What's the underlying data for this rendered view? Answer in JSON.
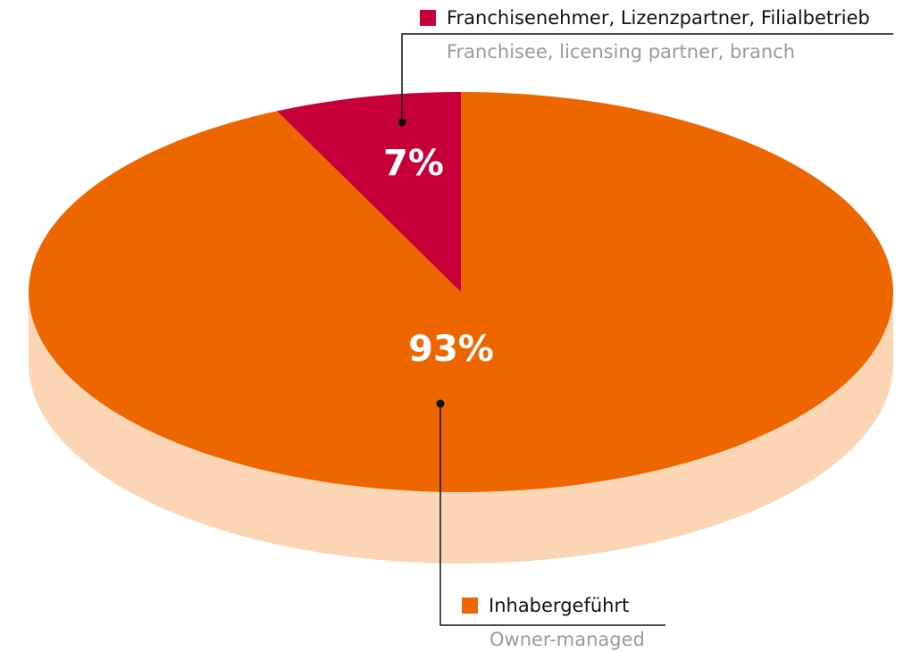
{
  "chart_data": {
    "type": "pie",
    "categories": [
      "Inhabergeführt",
      "Franchisenehmer, Lizenzpartner, Filialbetrieb"
    ],
    "category_translations": [
      "Owner-managed",
      "Franchisee, licensing partner, branch"
    ],
    "values": [
      93,
      7
    ],
    "value_labels": [
      "93%",
      "7%"
    ],
    "colors": [
      "#ee6600",
      "#c8003a"
    ],
    "side_color": "#fcd5b5"
  }
}
